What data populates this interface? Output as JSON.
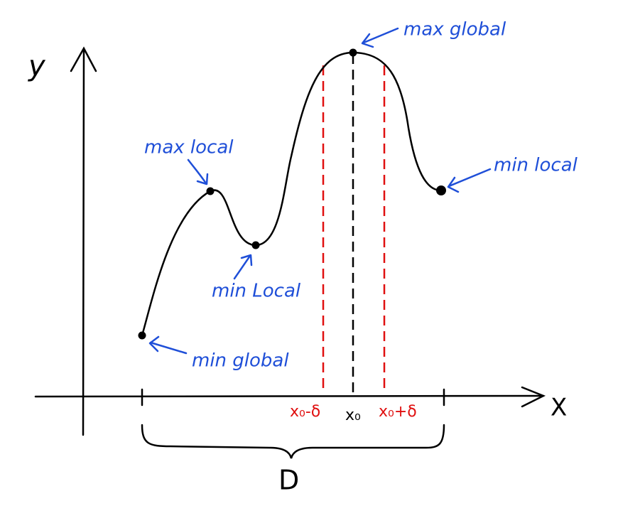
{
  "axes": {
    "y_label": "y",
    "x_label": "X"
  },
  "annotations": {
    "max_global": "max global",
    "max_local": "max local",
    "min_local_right": "min local",
    "min_local_middle": "min Local",
    "min_global": "min global"
  },
  "interval": {
    "left": "x₀-δ",
    "center": "x₀",
    "right": "x₀+δ"
  },
  "domain_label": "D"
}
